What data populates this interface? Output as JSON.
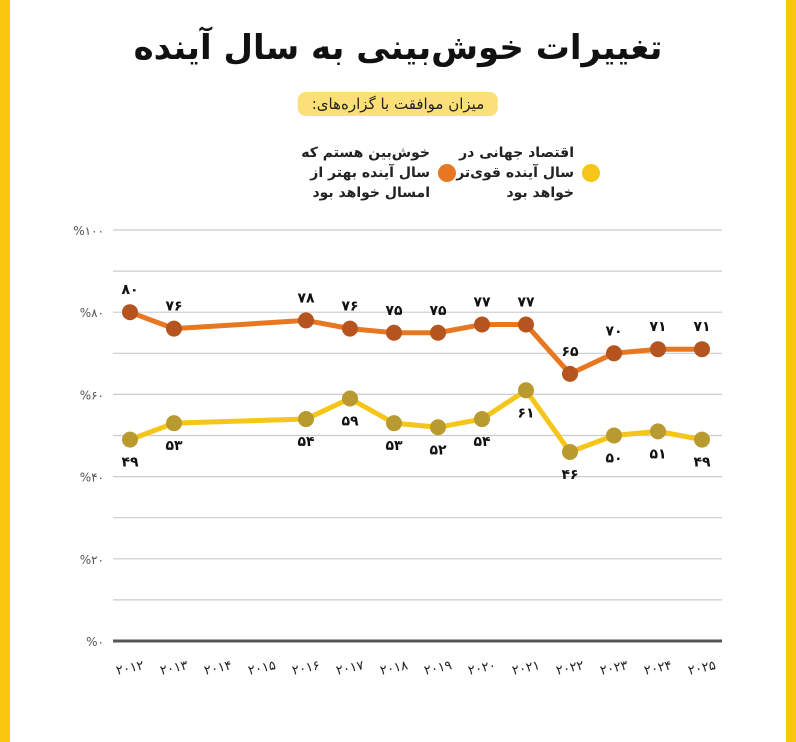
{
  "chart_data": {
    "type": "line",
    "title": "تغییرات خوش‌بینی به سال آینده",
    "subtitle": "میزان موافقت با گزاره‌های:",
    "categories": [
      2012,
      2013,
      2014,
      2015,
      2016,
      2017,
      2018,
      2019,
      2020,
      2021,
      2022,
      2023,
      2024,
      2025
    ],
    "category_labels": [
      "۲۰۱۲",
      "۲۰۱۳",
      "۲۰۱۴",
      "۲۰۱۵",
      "۲۰۱۶",
      "۲۰۱۷",
      "۲۰۱۸",
      "۲۰۱۹",
      "۲۰۲۰",
      "۲۰۲۱",
      "۲۰۲۲",
      "۲۰۲۳",
      "۲۰۲۴",
      "۲۰۲۵"
    ],
    "ylim": [
      0,
      100
    ],
    "yticks": [
      0,
      20,
      40,
      60,
      80,
      100
    ],
    "ytick_labels": [
      "%۰",
      "%۲۰",
      "%۴۰",
      "%۶۰",
      "%۸۰",
      "%۱۰۰"
    ],
    "grid": true,
    "legend_placement": "top",
    "series": [
      {
        "name": "خوش‌بین هستم که سال آینده بهتر از امسال خواهد بود",
        "color": "#E87722",
        "marker_color": "#B5541E",
        "values": [
          80,
          76,
          null,
          null,
          78,
          76,
          75,
          75,
          77,
          77,
          65,
          70,
          71,
          71
        ],
        "labels": [
          "۸۰",
          "۷۶",
          "",
          "",
          "۷۸",
          "۷۶",
          "۷۵",
          "۷۵",
          "۷۷",
          "۷۷",
          "۶۵",
          "۷۰",
          "۷۱",
          "۷۱"
        ]
      },
      {
        "name": "اقتصاد جهانی در سال آینده قوی‌تر خواهد بود",
        "color": "#F5C518",
        "marker_color": "#B89A30",
        "values": [
          49,
          53,
          null,
          null,
          54,
          59,
          53,
          52,
          54,
          61,
          46,
          50,
          51,
          49
        ],
        "labels": [
          "۴۹",
          "۵۳",
          "",
          "",
          "۵۴",
          "۵۹",
          "۵۳",
          "۵۲",
          "۵۴",
          "۶۱",
          "۴۶",
          "۵۰",
          "۵۱",
          "۴۹"
        ]
      }
    ]
  }
}
